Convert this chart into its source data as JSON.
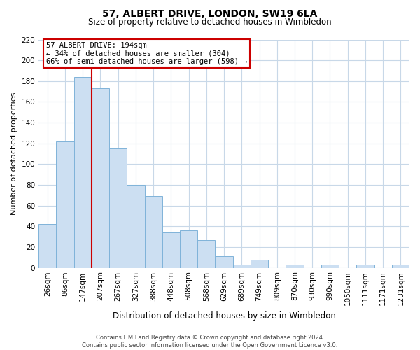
{
  "title": "57, ALBERT DRIVE, LONDON, SW19 6LA",
  "subtitle": "Size of property relative to detached houses in Wimbledon",
  "xlabel": "Distribution of detached houses by size in Wimbledon",
  "ylabel": "Number of detached properties",
  "bar_labels": [
    "26sqm",
    "86sqm",
    "147sqm",
    "207sqm",
    "267sqm",
    "327sqm",
    "388sqm",
    "448sqm",
    "508sqm",
    "568sqm",
    "629sqm",
    "689sqm",
    "749sqm",
    "809sqm",
    "870sqm",
    "930sqm",
    "990sqm",
    "1050sqm",
    "1111sqm",
    "1171sqm",
    "1231sqm"
  ],
  "bar_values": [
    42,
    122,
    184,
    173,
    115,
    80,
    69,
    34,
    36,
    27,
    11,
    3,
    8,
    0,
    3,
    0,
    3,
    0,
    3,
    0,
    3
  ],
  "bar_color": "#ccdff2",
  "bar_edge_color": "#7fb3d9",
  "vline_x_index": 2.5,
  "vline_color": "#cc0000",
  "ylim": [
    0,
    220
  ],
  "yticks": [
    0,
    20,
    40,
    60,
    80,
    100,
    120,
    140,
    160,
    180,
    200,
    220
  ],
  "annotation_title": "57 ALBERT DRIVE: 194sqm",
  "annotation_line1": "← 34% of detached houses are smaller (304)",
  "annotation_line2": "66% of semi-detached houses are larger (598) →",
  "footer_line1": "Contains HM Land Registry data © Crown copyright and database right 2024.",
  "footer_line2": "Contains public sector information licensed under the Open Government Licence v3.0.",
  "background_color": "#ffffff",
  "grid_color": "#c8d8e8"
}
